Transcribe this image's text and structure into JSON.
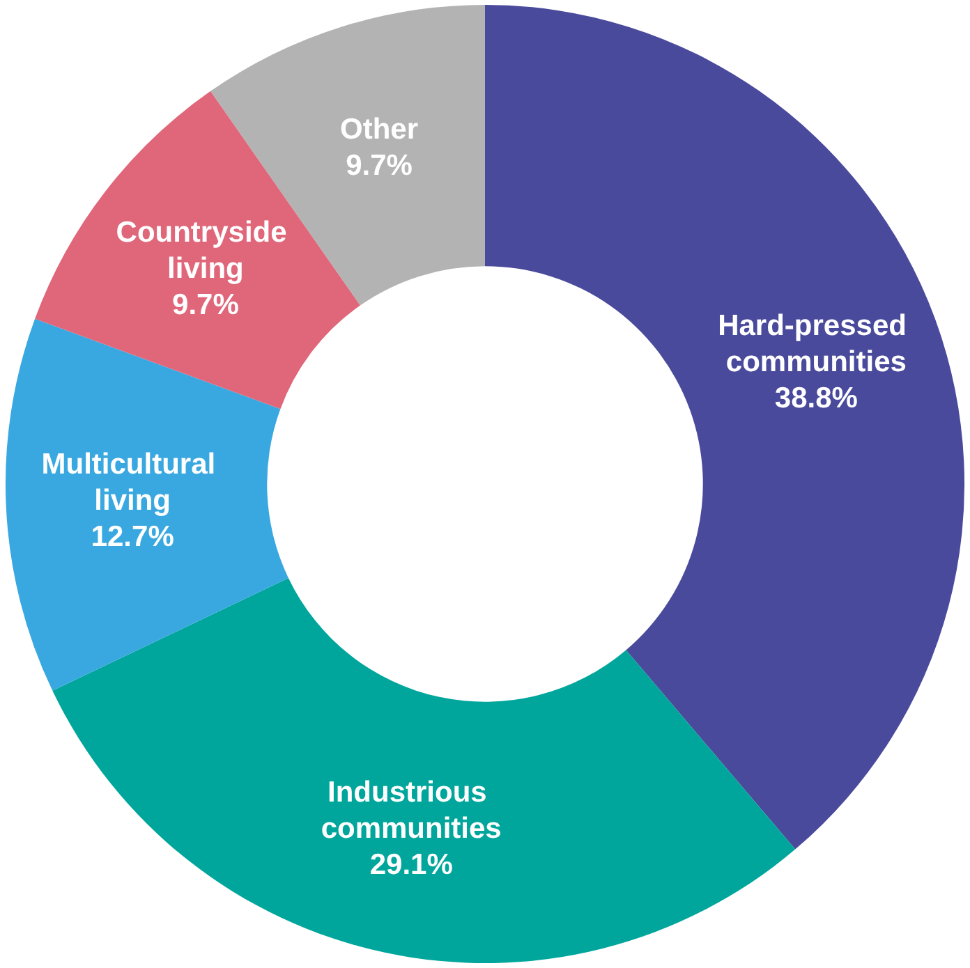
{
  "chart_data": {
    "type": "donut",
    "categories": [
      "Hard-pressed communities",
      "Industrious communities",
      "Multicultural living",
      "Countryside living",
      "Other"
    ],
    "values": [
      38.8,
      29.1,
      12.7,
      9.7,
      9.7
    ],
    "value_labels": [
      "38.8%",
      "29.1%",
      "12.7%",
      "9.7%",
      "9.7%"
    ],
    "colors": [
      "#4a4a9c",
      "#00a69c",
      "#3aa8e0",
      "#e0667a",
      "#b3b3b3"
    ],
    "legend": false
  }
}
